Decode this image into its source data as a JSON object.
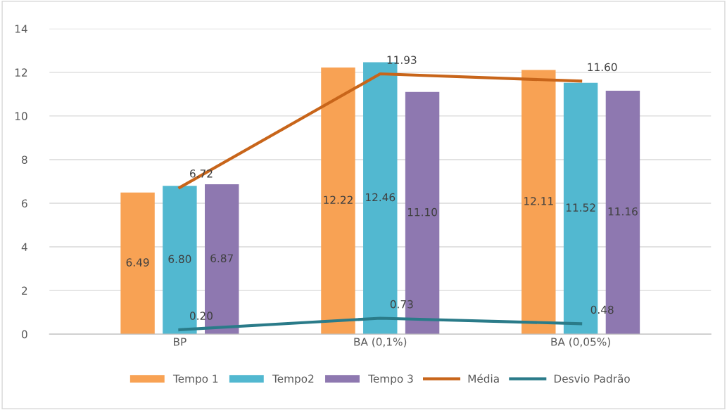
{
  "chart_data": {
    "type": "bar",
    "categories": [
      "BP",
      "BA (0,1%)",
      "BA (0,05%)"
    ],
    "series": [
      {
        "name": "Tempo 1",
        "color": "#f8a254",
        "values": [
          6.49,
          12.22,
          12.11
        ],
        "value_labels": [
          "6.49",
          "12.22",
          "12.11"
        ]
      },
      {
        "name": "Tempo2",
        "color": "#52b8d0",
        "values": [
          6.8,
          12.46,
          11.52
        ],
        "value_labels": [
          "6.80",
          "12.46",
          "11.52"
        ]
      },
      {
        "name": "Tempo 3",
        "color": "#8e78b0",
        "values": [
          6.87,
          11.1,
          11.16
        ],
        "value_labels": [
          "6.87",
          "11.10",
          "11.16"
        ]
      },
      {
        "name": "Média",
        "type": "line",
        "color": "#c8651a",
        "values": [
          6.72,
          11.93,
          11.6
        ],
        "value_labels": [
          "6.72",
          "11.93",
          "11.60"
        ]
      },
      {
        "name": "Desvio Padrão",
        "type": "line",
        "color": "#2a7b89",
        "values": [
          0.2,
          0.73,
          0.48
        ],
        "value_labels": [
          "0.20",
          "0.73",
          "0.48"
        ]
      }
    ],
    "ylim": [
      0,
      14
    ],
    "yticks": [
      0,
      2,
      4,
      6,
      8,
      10,
      12,
      14
    ],
    "grid": "y",
    "legend": "bottom",
    "marker": "none",
    "line_style": "solid"
  }
}
